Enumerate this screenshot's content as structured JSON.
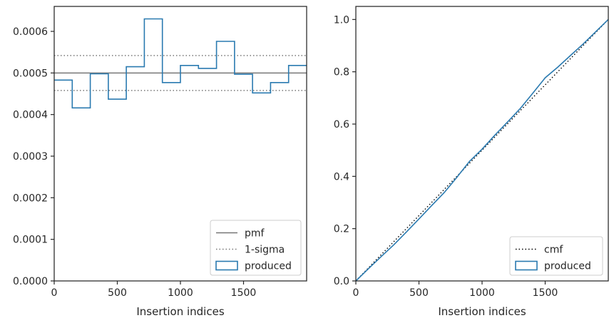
{
  "chart_data": [
    {
      "type": "histogram-step",
      "xlabel": "Insertion indices",
      "ylabel": "",
      "xlim": [
        0,
        2000
      ],
      "ylim": [
        0,
        0.00066
      ],
      "xticks": [
        0,
        500,
        1000,
        1500
      ],
      "xtick_labels": [
        "0",
        "500",
        "1000",
        "1500"
      ],
      "yticks": [
        0,
        0.0001,
        0.0002,
        0.0003,
        0.0004,
        0.0005,
        0.0006
      ],
      "ytick_labels": [
        "0.0000",
        "0.0001",
        "0.0002",
        "0.0003",
        "0.0004",
        "0.0005",
        "0.0006"
      ],
      "grid": false,
      "legend_position": "lower-right",
      "bin_edges": [
        0,
        143,
        286,
        429,
        571,
        714,
        857,
        1000,
        1143,
        1286,
        1429,
        1571,
        1714,
        1857,
        2000
      ],
      "series": [
        {
          "name": "produced",
          "style": "step",
          "color": "#2a7ab0",
          "values": [
            0.000483,
            0.000416,
            0.000498,
            0.000437,
            0.000515,
            0.00063,
            0.000477,
            0.000518,
            0.000511,
            0.000576,
            0.000497,
            0.000452,
            0.000477,
            0.000518
          ]
        }
      ],
      "reference_lines": [
        {
          "name": "pmf",
          "y": 0.0005,
          "style": "solid",
          "color": "#777777"
        },
        {
          "name": "1-sigma",
          "y": 0.000542,
          "style": "dotted",
          "color": "#777777"
        },
        {
          "name": "",
          "y": 0.000458,
          "style": "dotted",
          "color": "#777777"
        }
      ],
      "legend_entries": [
        "pmf",
        "1-sigma",
        "produced"
      ]
    },
    {
      "type": "line",
      "xlabel": "Insertion indices",
      "ylabel": "",
      "xlim": [
        0,
        2000
      ],
      "ylim": [
        0,
        1.05
      ],
      "xticks": [
        0,
        500,
        1000,
        1500
      ],
      "xtick_labels": [
        "0",
        "500",
        "1000",
        "1500"
      ],
      "yticks": [
        0,
        0.2,
        0.4,
        0.6,
        0.8,
        1.0
      ],
      "ytick_labels": [
        "0.0",
        "0.2",
        "0.4",
        "0.6",
        "0.8",
        "1.0"
      ],
      "grid": false,
      "legend_position": "lower-right",
      "series": [
        {
          "name": "cmf",
          "style": "dotted",
          "color": "#000000",
          "x": [
            0,
            2000
          ],
          "y": [
            0,
            1.0
          ]
        },
        {
          "name": "produced",
          "style": "solid",
          "color": "#2a7ab0",
          "x": [
            0,
            100,
            200,
            300,
            400,
            500,
            600,
            700,
            800,
            900,
            1000,
            1100,
            1200,
            1300,
            1400,
            1500,
            1600,
            1700,
            1800,
            1900,
            2000
          ],
          "y": [
            0,
            0.047,
            0.093,
            0.138,
            0.187,
            0.237,
            0.288,
            0.338,
            0.396,
            0.457,
            0.504,
            0.557,
            0.607,
            0.658,
            0.717,
            0.777,
            0.818,
            0.862,
            0.906,
            0.953,
            1.0
          ]
        }
      ],
      "legend_entries": [
        "cmf",
        "produced"
      ]
    }
  ]
}
